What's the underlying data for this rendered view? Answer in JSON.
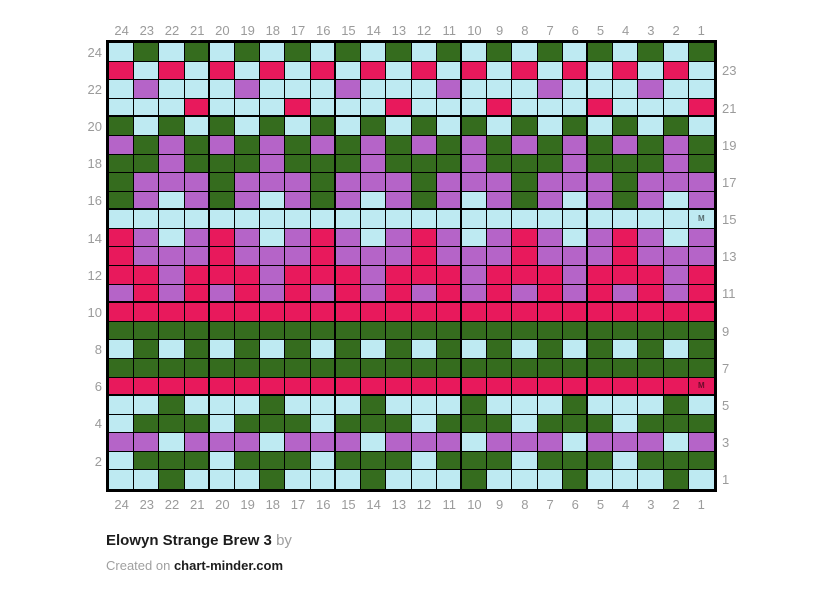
{
  "chart_data": {
    "type": "heatmap",
    "title": "Elowyn Strange Brew 3",
    "grid_columns": 24,
    "grid_rows": 24,
    "bold_grid_every": 5,
    "grid_line_color": "#000000",
    "column_labels_top": [
      "24",
      "23",
      "22",
      "21",
      "20",
      "19",
      "18",
      "17",
      "16",
      "15",
      "14",
      "13",
      "12",
      "11",
      "10",
      "9",
      "8",
      "7",
      "6",
      "5",
      "4",
      "3",
      "2",
      "1"
    ],
    "column_labels_bottom": [
      "24",
      "23",
      "22",
      "21",
      "20",
      "19",
      "18",
      "17",
      "16",
      "15",
      "14",
      "13",
      "12",
      "11",
      "10",
      "9",
      "8",
      "7",
      "6",
      "5",
      "4",
      "3",
      "2",
      "1"
    ],
    "row_labels_left": [
      "24",
      "22",
      "20",
      "18",
      "16",
      "14",
      "12",
      "10",
      "8",
      "6",
      "4",
      "2"
    ],
    "row_labels_right": [
      "23",
      "21",
      "19",
      "17",
      "15",
      "13",
      "11",
      "9",
      "7",
      "5",
      "3",
      "1"
    ],
    "palette": {
      "G": "#356C1E",
      "C": "#BEEAF2",
      "P": "#E8195C",
      "V": "#B564C8"
    },
    "palette_names": {
      "G": "dark-green",
      "C": "light-blue",
      "P": "pink",
      "V": "purple"
    },
    "rows": [
      {
        "row": 24,
        "cells": "CGCGCGCGCGCGCGCGCGCGCGCG"
      },
      {
        "row": 23,
        "cells": "PCPCPCPCPCPCPCPCPCPCPCPC"
      },
      {
        "row": 22,
        "cells": "CVCCCVCCCVCCCVCCCVCCCVCC"
      },
      {
        "row": 21,
        "cells": "CCCPCCCPCCCPCCCPCCCPCCCP"
      },
      {
        "row": 20,
        "cells": "GCGCGCGCGCGCGCGCGCGCGCGC"
      },
      {
        "row": 19,
        "cells": "VGVGVGVGVGVGVGVGVGVGVGVG"
      },
      {
        "row": 18,
        "cells": "GGVGGGVGGGVGGGVGGGVGGGVG"
      },
      {
        "row": 17,
        "cells": "GVVVGVVVGVVVGVVVGVVVGVVV"
      },
      {
        "row": 16,
        "cells": "GVCVGVCVGVCVGVCVGVCVGVCV"
      },
      {
        "row": 15,
        "cells": "CCCCCCCCCCCCCCCCCCCCCCCC"
      },
      {
        "row": 14,
        "cells": "PVCVPVCVPVCVPVCVPVCVPVCV"
      },
      {
        "row": 13,
        "cells": "PVVVPVVVPVVVPVVVPVVVPVVV"
      },
      {
        "row": 12,
        "cells": "PPVPPPVPPPVPPPVPPPVPPPVP"
      },
      {
        "row": 11,
        "cells": "VPVPVPVPVPVPVPVPVPVPVPVP"
      },
      {
        "row": 10,
        "cells": "PPPPPPPPPPPPPPPPPPPPPPPP"
      },
      {
        "row": 9,
        "cells": "GGGGGGGGGGGGGGGGGGGGGGGG"
      },
      {
        "row": 8,
        "cells": "CGCGCGCGCGCGCGCGCGCGCGCG"
      },
      {
        "row": 7,
        "cells": "GGGGGGGGGGGGGGGGGGGGGGGG"
      },
      {
        "row": 6,
        "cells": "PPPPPPPPPPPPPPPPPPPPPPPP"
      },
      {
        "row": 5,
        "cells": "CCGCCCGCCCGCCCGCCCGCCCGC"
      },
      {
        "row": 4,
        "cells": "CGGGCGGGCGGGCGGGCGGGCGGG"
      },
      {
        "row": 3,
        "cells": "VVCVVVCVVVCVVVCVVVCVVVCV"
      },
      {
        "row": 2,
        "cells": "CGGGCGGGCGGGCGGGCGGGCGGG"
      },
      {
        "row": 1,
        "cells": "CCGCCCGCCCGCCCGCCCGCCCGC"
      }
    ],
    "markers": [
      {
        "row": 15,
        "col": 1,
        "glyph": "M"
      },
      {
        "row": 6,
        "col": 1,
        "glyph": "M"
      }
    ]
  },
  "footer": {
    "title": "Elowyn Strange Brew 3",
    "by_label": "by",
    "created_prefix": "Created on",
    "site": "chart-minder.com"
  }
}
